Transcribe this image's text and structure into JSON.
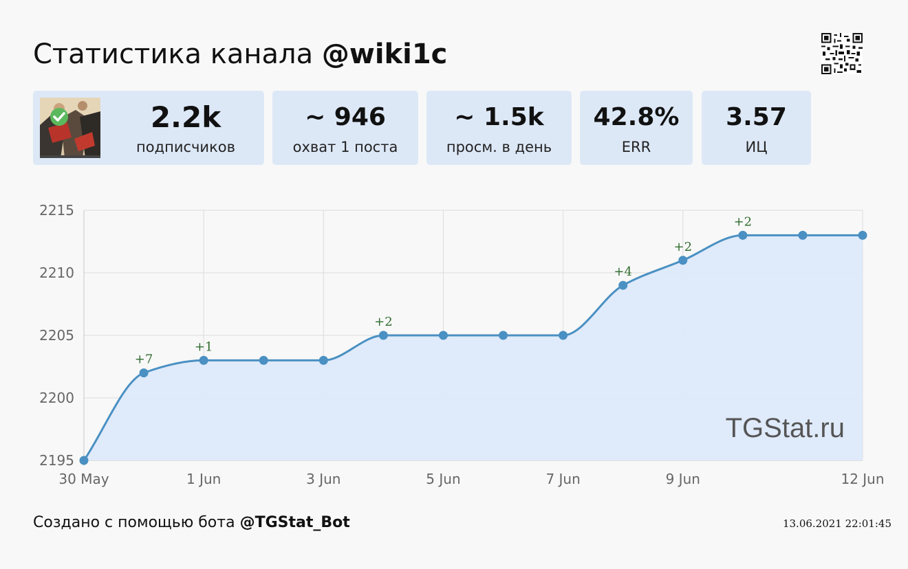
{
  "header": {
    "title_prefix": "Статистика канала",
    "title_handle": "@wiki1c"
  },
  "stats": [
    {
      "value": "2.2k",
      "label": "подписчиков"
    },
    {
      "value": "~ 946",
      "label": "охват 1 поста"
    },
    {
      "value": "~ 1.5k",
      "label": "просм. в день"
    },
    {
      "value": "42.8%",
      "label": "ERR"
    },
    {
      "value": "3.57",
      "label": "ИЦ"
    }
  ],
  "watermark": "TGStat.ru",
  "footer": {
    "prefix": "Создано с помощью бота",
    "handle": "@TGStat_Bot",
    "timestamp": "13.06.2021 22:01:45"
  },
  "colors": {
    "card_bg": "#dde8f7",
    "line": "#4a90c2",
    "area": "#dde9fa",
    "delta_label": "#2e6b2e",
    "badge": "#5cb85c"
  },
  "chart_data": {
    "type": "area",
    "title": "",
    "xlabel": "",
    "ylabel": "",
    "x": [
      "30 May",
      "31 May",
      "1 Jun",
      "2 Jun",
      "3 Jun",
      "4 Jun",
      "5 Jun",
      "6 Jun",
      "7 Jun",
      "8 Jun",
      "9 Jun",
      "10 Jun",
      "11 Jun",
      "12 Jun"
    ],
    "x_tick_labels": [
      "30 May",
      "1 Jun",
      "3 Jun",
      "5 Jun",
      "7 Jun",
      "9 Jun",
      "12 Jun"
    ],
    "series": [
      {
        "values": [
          2195,
          2202,
          2203,
          2203,
          2203,
          2205,
          2205,
          2205,
          2205,
          2209,
          2211,
          2213,
          2213,
          2213
        ]
      }
    ],
    "annotations": [
      {
        "x": "31 May",
        "text": "+7"
      },
      {
        "x": "1 Jun",
        "text": "+1"
      },
      {
        "x": "4 Jun",
        "text": "+2"
      },
      {
        "x": "8 Jun",
        "text": "+4"
      },
      {
        "x": "9 Jun",
        "text": "+2"
      },
      {
        "x": "10 Jun",
        "text": "+2"
      }
    ],
    "y_ticks": [
      2195,
      2200,
      2205,
      2210,
      2215
    ],
    "ylim": [
      2195,
      2215
    ],
    "grid": true
  }
}
